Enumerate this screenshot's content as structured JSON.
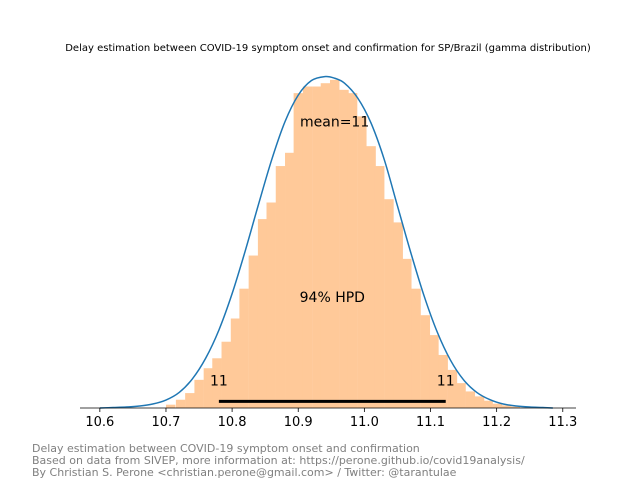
{
  "chart_data": {
    "type": "histogram",
    "title": "Delay estimation between COVID-19 symptom onset and confirmation for SP/Brazil (gamma distribution)",
    "xlabel": "",
    "ylabel": "",
    "xlim": [
      10.57,
      11.32
    ],
    "xticks": [
      10.6,
      10.7,
      10.8,
      10.9,
      11.0,
      11.1,
      11.2,
      11.3
    ],
    "xtick_labels": [
      "10.6",
      "10.7",
      "10.8",
      "10.9",
      "11.0",
      "11.1",
      "11.2",
      "11.3"
    ],
    "ylim": [
      0,
      1.05
    ],
    "bins": {
      "left_edges": [
        10.7,
        10.715,
        10.729,
        10.743,
        10.757,
        10.77,
        10.784,
        10.798,
        10.811,
        10.825,
        10.839,
        10.852,
        10.866,
        10.88,
        10.893,
        10.907,
        10.921,
        10.934,
        10.948,
        10.962,
        10.975,
        10.989,
        11.003,
        11.016,
        11.03,
        11.044,
        11.057,
        11.071,
        11.085,
        11.098,
        11.112,
        11.126,
        11.139,
        11.153,
        11.167,
        11.18,
        11.194,
        11.208,
        11.221
      ],
      "width": 0.0137,
      "heights": [
        0.01,
        0.025,
        0.045,
        0.085,
        0.12,
        0.15,
        0.2,
        0.27,
        0.36,
        0.46,
        0.57,
        0.62,
        0.73,
        0.77,
        0.95,
        0.97,
        0.97,
        0.98,
        0.99,
        0.96,
        0.95,
        0.88,
        0.79,
        0.73,
        0.63,
        0.56,
        0.45,
        0.36,
        0.28,
        0.22,
        0.16,
        0.115,
        0.075,
        0.05,
        0.035,
        0.022,
        0.013,
        0.008,
        0.004
      ],
      "color": "#ffc999"
    },
    "kde": {
      "x": [
        10.6,
        10.62,
        10.64,
        10.66,
        10.68,
        10.7,
        10.72,
        10.74,
        10.76,
        10.78,
        10.8,
        10.82,
        10.84,
        10.86,
        10.88,
        10.9,
        10.92,
        10.94,
        10.955,
        10.97,
        10.99,
        11.01,
        11.03,
        11.05,
        11.07,
        11.09,
        11.11,
        11.13,
        11.15,
        11.17,
        11.19,
        11.21,
        11.23,
        11.25,
        11.27,
        11.285
      ],
      "y": [
        0.0,
        0.0015,
        0.003,
        0.006,
        0.012,
        0.024,
        0.047,
        0.088,
        0.15,
        0.235,
        0.345,
        0.475,
        0.615,
        0.75,
        0.864,
        0.944,
        0.988,
        1.0,
        0.995,
        0.98,
        0.935,
        0.86,
        0.75,
        0.61,
        0.47,
        0.34,
        0.23,
        0.145,
        0.085,
        0.047,
        0.025,
        0.012,
        0.006,
        0.003,
        0.0015,
        0.0
      ],
      "color": "#1f77b4"
    },
    "hpd": {
      "low": 10.78,
      "high": 11.123,
      "low_label": "11",
      "high_label": "11",
      "label": "94% HPD",
      "level_y": 0.02
    },
    "mean_annotation": {
      "text": "mean=11",
      "x": 10.955,
      "y": 0.85
    }
  },
  "footer": {
    "line1": "Delay estimation between COVID-19 symptom onset and confirmation",
    "line2": "Based on data from SIVEP, more information at: https://perone.github.io/covid19analysis/",
    "line3": "By Christian S. Perone <christian.perone@gmail.com> / Twitter: @tarantulae"
  }
}
